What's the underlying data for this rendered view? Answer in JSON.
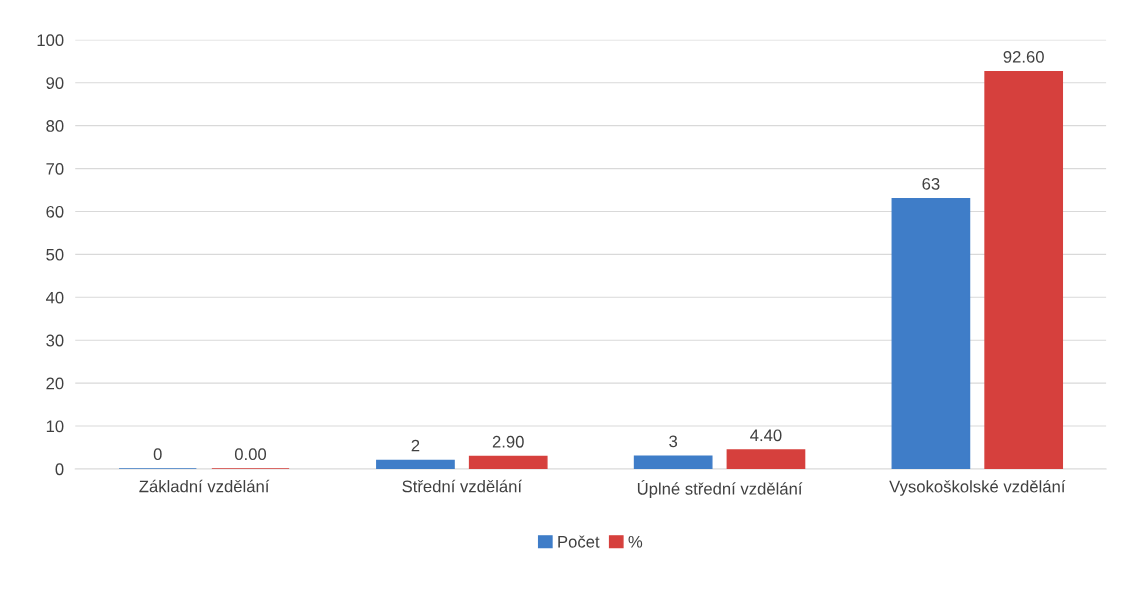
{
  "chart_data": {
    "type": "bar",
    "categories": [
      "Základní vzdělání",
      "Střední vzdělání",
      "Úplné střední vzdělání",
      "Vysokoškolské vzdělání"
    ],
    "series": [
      {
        "name": "Počet",
        "color": "#3f7dc8",
        "values": [
          0,
          2,
          3,
          63
        ],
        "value_labels": [
          "0",
          "2",
          "3",
          "63"
        ]
      },
      {
        "name": "%",
        "color": "#d6403d",
        "values": [
          0,
          2.9,
          4.4,
          92.6
        ],
        "value_labels": [
          "0.00",
          "2.90",
          "4.40",
          "92.60"
        ]
      }
    ],
    "ylim": [
      0,
      100
    ],
    "yticks": [
      0,
      10,
      20,
      30,
      40,
      50,
      60,
      70,
      80,
      90,
      100
    ],
    "grid": "y",
    "legend": "bottom"
  }
}
